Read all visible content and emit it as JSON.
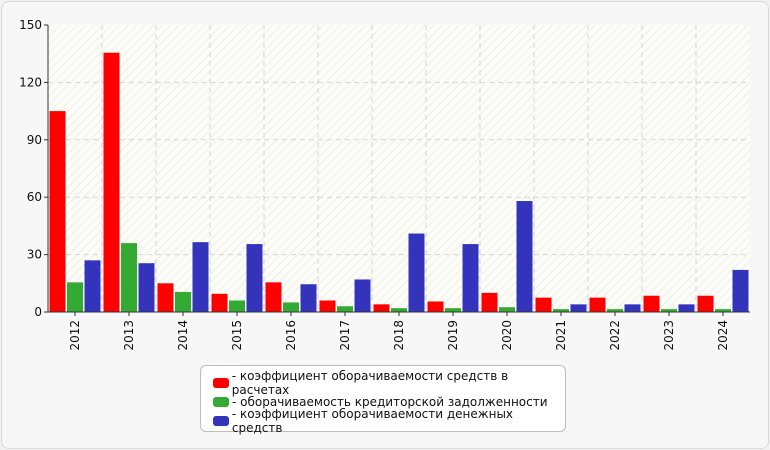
{
  "chart_data": {
    "type": "bar",
    "categories": [
      "2012",
      "2013",
      "2014",
      "2015",
      "2016",
      "2017",
      "2018",
      "2019",
      "2020",
      "2021",
      "2022",
      "2023",
      "2024"
    ],
    "series": [
      {
        "name": "- коэффициент оборачиваемости средств в расчетах",
        "color": "#ff0000",
        "values": [
          105,
          135.5,
          15,
          9.5,
          15.5,
          6,
          4,
          5.5,
          10,
          7.5,
          7.5,
          8.5,
          8.5
        ]
      },
      {
        "name": "- оборачиваемость кредиторской задолженности",
        "color": "#33aa33",
        "values": [
          15.5,
          36,
          10.5,
          6,
          5,
          3,
          2,
          2,
          2.5,
          1.5,
          1.5,
          1.5,
          1.5
        ]
      },
      {
        "name": "- коэффициент оборачиваемости денежных средств",
        "color": "#3333bb",
        "values": [
          27,
          25.5,
          36.5,
          35.5,
          14.5,
          17,
          41,
          35.5,
          58,
          4,
          4,
          4,
          22
        ]
      }
    ],
    "yticks": [
      0,
      30,
      60,
      90,
      120,
      150
    ],
    "ylim": [
      0,
      150
    ],
    "grid": true,
    "legend_position": "bottom"
  }
}
